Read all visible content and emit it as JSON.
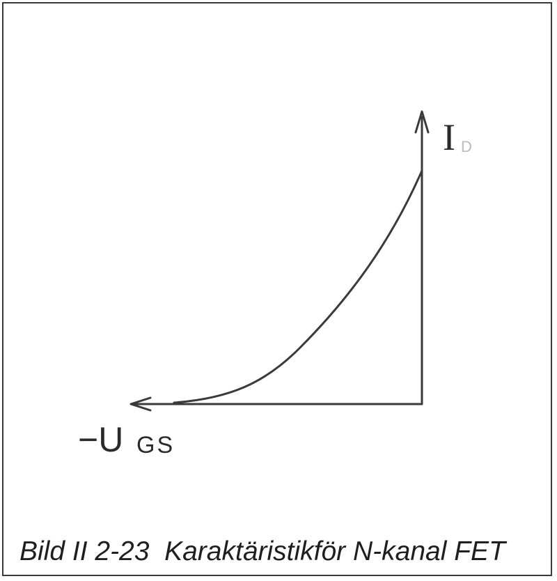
{
  "diagram": {
    "id_label": "I",
    "id_label_sub": "D",
    "ugs_label_prefix": "−U",
    "ugs_label_sub": "GS"
  },
  "caption": "Bild II 2-23  Karaktäristikför N-kanal FET"
}
